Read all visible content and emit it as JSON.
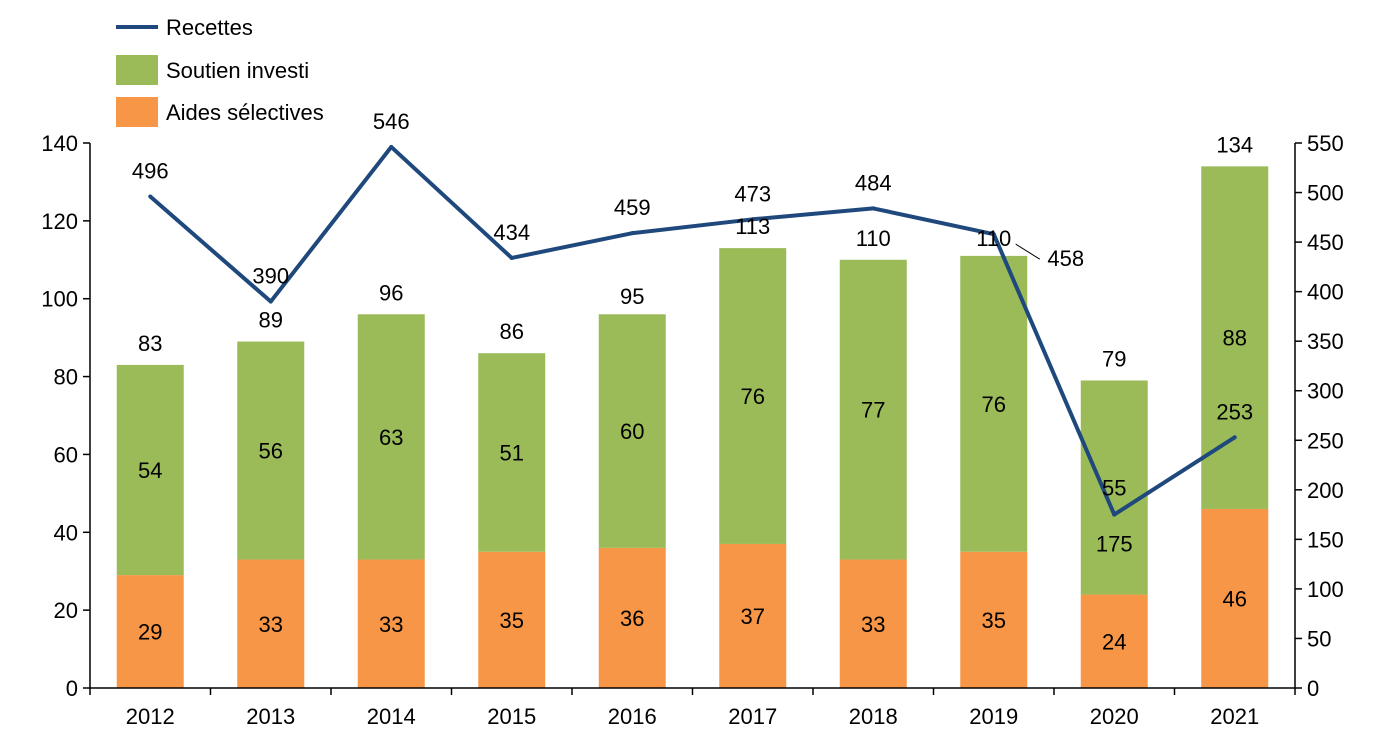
{
  "chart_data": {
    "type": "bar",
    "stacked": true,
    "categories": [
      "2012",
      "2013",
      "2014",
      "2015",
      "2016",
      "2017",
      "2018",
      "2019",
      "2020",
      "2021"
    ],
    "series": [
      {
        "name": "Aides sélectives",
        "axis": "left",
        "type": "bar",
        "color": "#F79646",
        "values": [
          29,
          33,
          33,
          35,
          36,
          37,
          33,
          35,
          24,
          46
        ]
      },
      {
        "name": "Soutien investi",
        "axis": "left",
        "type": "bar",
        "color": "#9BBB59",
        "values": [
          54,
          56,
          63,
          51,
          60,
          76,
          77,
          76,
          55,
          88
        ]
      },
      {
        "name": "Recettes",
        "axis": "right",
        "type": "line",
        "color": "#1F497D",
        "values": [
          496,
          390,
          546,
          434,
          459,
          473,
          484,
          458,
          175,
          253
        ]
      }
    ],
    "bar_totals": [
      83,
      89,
      96,
      86,
      95,
      113,
      110,
      110,
      79,
      134
    ],
    "y_left": {
      "range": [
        0,
        140
      ],
      "ticks": [
        "0",
        "20",
        "40",
        "60",
        "80",
        "100",
        "120",
        "140"
      ]
    },
    "y_right": {
      "range": [
        0,
        550
      ],
      "ticks": [
        "0",
        "50",
        "100",
        "150",
        "200",
        "250",
        "300",
        "350",
        "400",
        "450",
        "500",
        "550"
      ]
    },
    "legend": {
      "position": "top-left",
      "entries": [
        "Recettes",
        "Soutien investi",
        "Aides sélectives"
      ]
    },
    "grid": false
  }
}
